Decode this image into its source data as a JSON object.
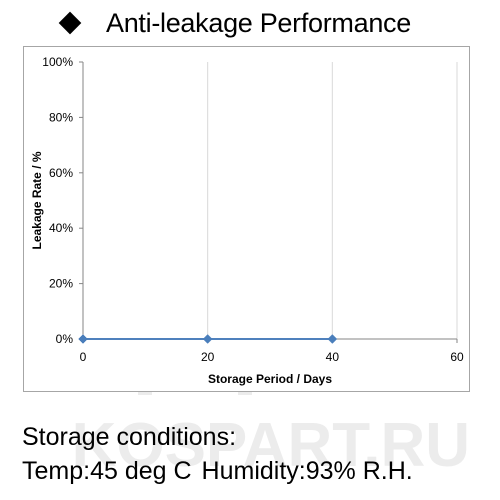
{
  "title": "Anti-leakage Performance",
  "conditions": {
    "heading": "Storage conditions:",
    "temp": "Temp:45 deg C",
    "humidity": "Humidity:93% R.H."
  },
  "watermark": {
    "text": "KOSPART.RU"
  },
  "colors": {
    "series": "#4f81bd",
    "marker": "#4a7ebb",
    "grid": "#d9d9d9",
    "axis": "#868686",
    "watermark": "#ececec"
  },
  "chart_data": {
    "type": "line",
    "title": "",
    "xlabel": "Storage Period / Days",
    "ylabel": "Leakage Rate / %",
    "xlim": [
      0,
      60
    ],
    "ylim": [
      0,
      100
    ],
    "x_ticks": [
      0,
      20,
      40,
      60
    ],
    "y_ticks": [
      0,
      20,
      40,
      60,
      80,
      100
    ],
    "y_tick_labels": [
      "0%",
      "20%",
      "40%",
      "60%",
      "80%",
      "100%"
    ],
    "grid": "vertical",
    "legend": "none",
    "series": [
      {
        "x": [
          0,
          20,
          40
        ],
        "y": [
          0,
          0,
          0
        ]
      }
    ]
  }
}
